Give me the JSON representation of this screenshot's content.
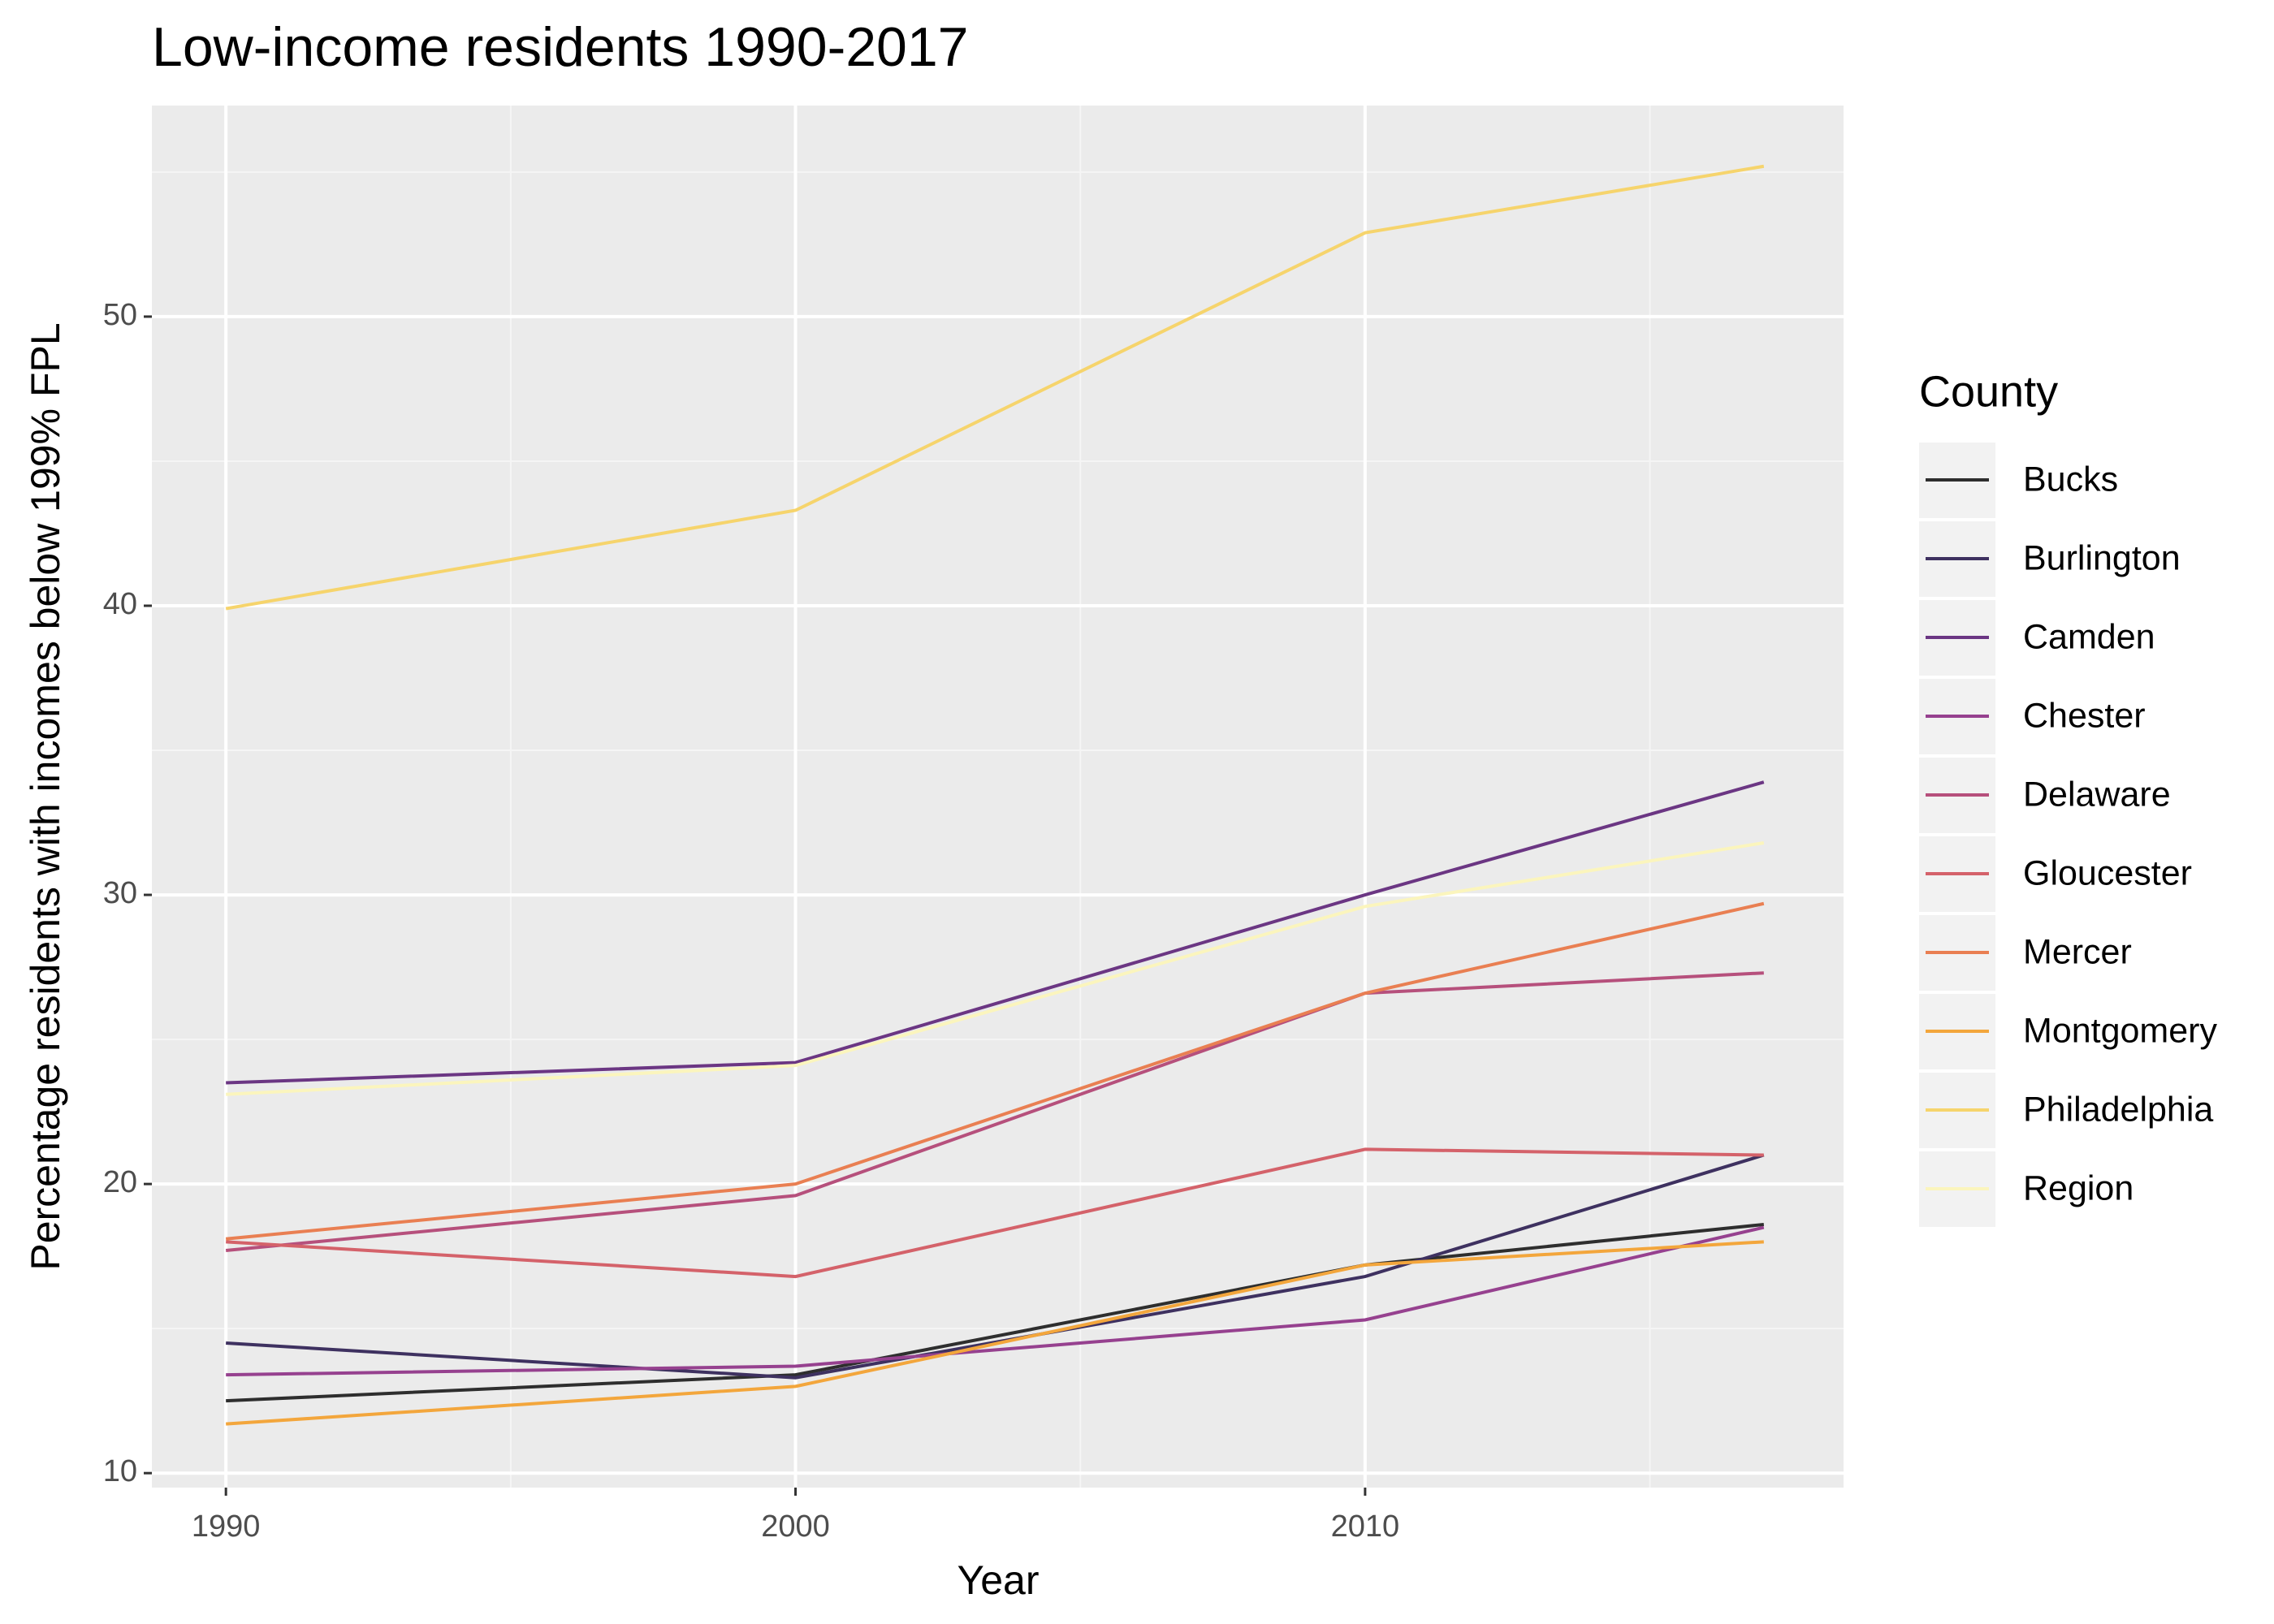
{
  "chart_data": {
    "type": "line",
    "title": "Low-income residents 1990-2017",
    "x_label": "Year",
    "y_label": "Percentage residents with incomes below 199% FPL",
    "legend_title": "County",
    "legend_position": "right",
    "grid": true,
    "x": [
      1990,
      2000,
      2010,
      2017
    ],
    "xlim": [
      1988.7,
      2018.4
    ],
    "xticks": [
      1990,
      2000,
      2010
    ],
    "ylim": [
      9.5,
      57.3
    ],
    "yticks": [
      10,
      20,
      30,
      40,
      50
    ],
    "series": [
      {
        "name": "Bucks",
        "color": "#2e2e2e",
        "values": [
          12.5,
          13.4,
          17.2,
          18.6
        ]
      },
      {
        "name": "Burlington",
        "color": "#3e3160",
        "values": [
          14.5,
          13.3,
          16.8,
          21.0
        ]
      },
      {
        "name": "Camden",
        "color": "#6b3683",
        "values": [
          23.5,
          24.2,
          30.0,
          33.9
        ]
      },
      {
        "name": "Chester",
        "color": "#96418f",
        "values": [
          13.4,
          13.7,
          15.3,
          18.5
        ]
      },
      {
        "name": "Delaware",
        "color": "#b6507c",
        "values": [
          17.7,
          19.6,
          26.6,
          27.3
        ]
      },
      {
        "name": "Gloucester",
        "color": "#d4626a",
        "values": [
          18.0,
          16.8,
          21.2,
          21.0
        ]
      },
      {
        "name": "Mercer",
        "color": "#e97f52",
        "values": [
          18.1,
          20.0,
          26.6,
          29.7
        ]
      },
      {
        "name": "Montgomery",
        "color": "#f3a63c",
        "values": [
          11.7,
          13.0,
          17.2,
          18.0
        ]
      },
      {
        "name": "Philadelphia",
        "color": "#f6d46c",
        "values": [
          39.9,
          43.3,
          52.9,
          55.2
        ]
      },
      {
        "name": "Region",
        "color": "#fbf5bd",
        "values": [
          23.1,
          24.1,
          29.6,
          31.8
        ]
      }
    ]
  }
}
